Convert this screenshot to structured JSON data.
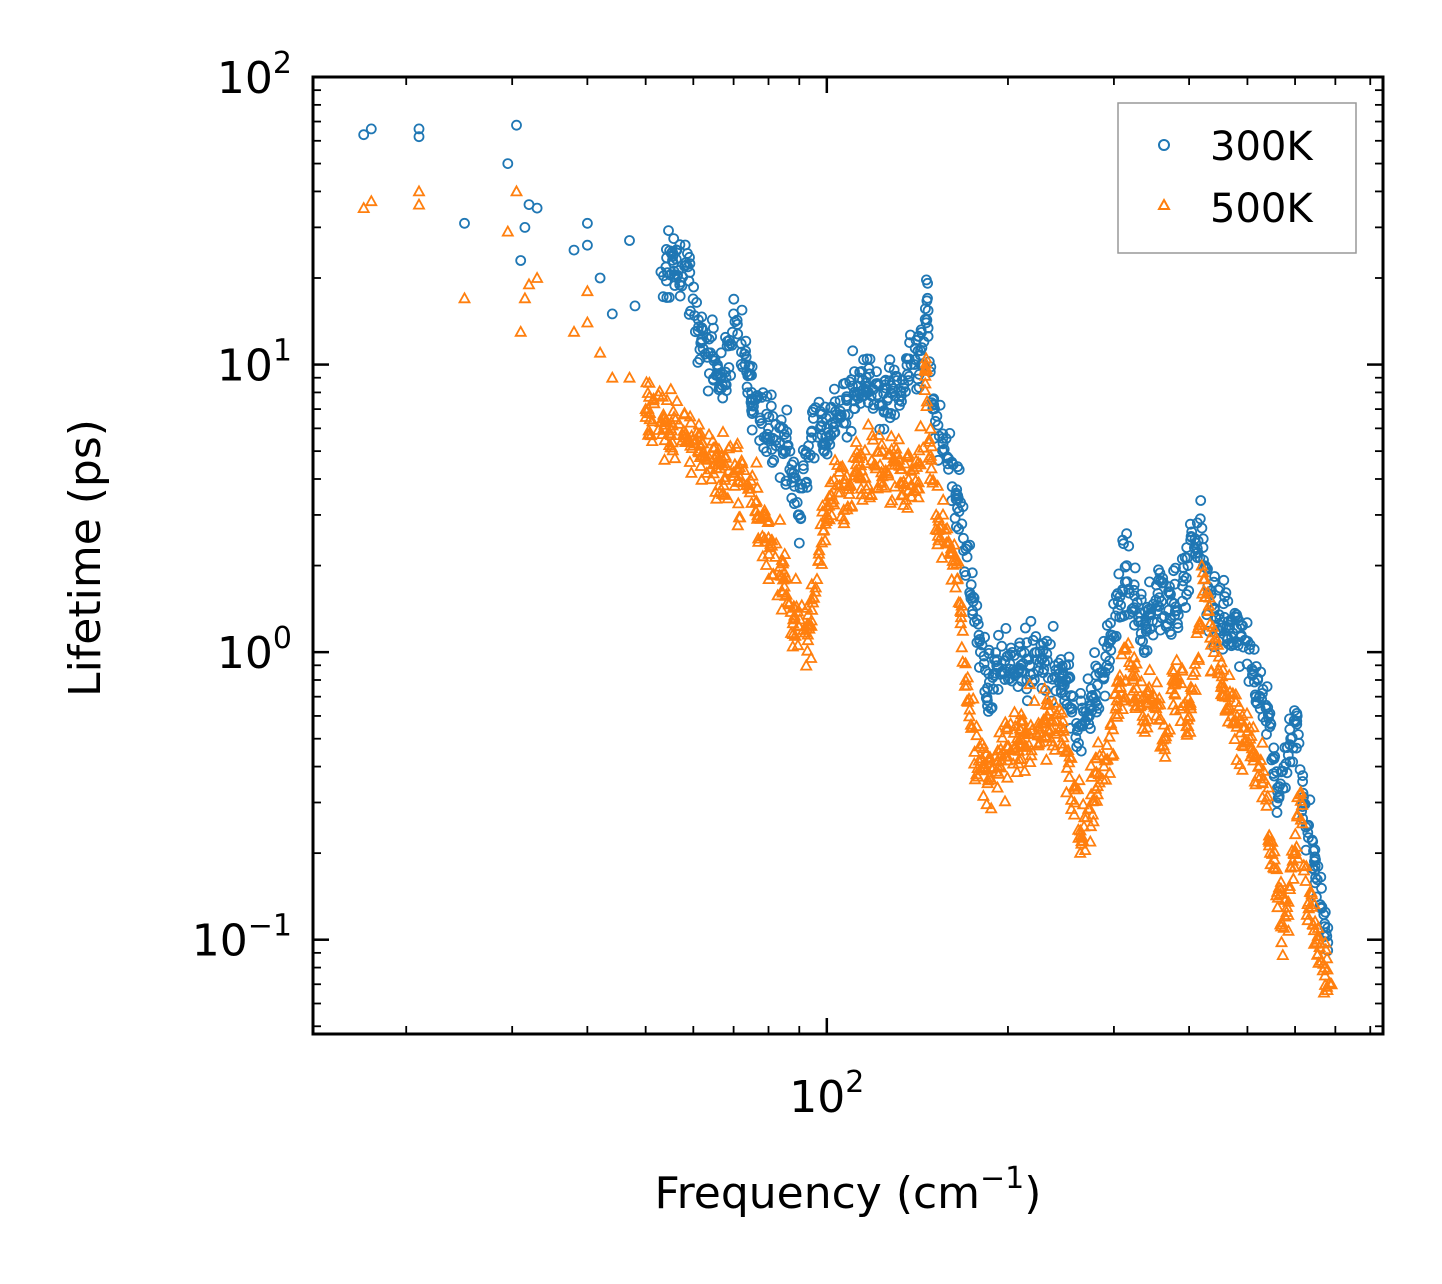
{
  "chart_data": {
    "type": "scatter",
    "title": "",
    "xlabel": "Frequency (cm",
    "xlabel_sup": "−1",
    "xlabel_close": ")",
    "ylabel": "Lifetime (ps)",
    "xscale": "log",
    "yscale": "log",
    "xlim": [
      14,
      840
    ],
    "ylim": [
      0.047,
      100
    ],
    "x_ticks": [
      {
        "value": 100,
        "base": "10",
        "exp": "2"
      }
    ],
    "y_ticks": [
      {
        "value": 0.1,
        "base": "10",
        "exp": "−1"
      },
      {
        "value": 1,
        "base": "10",
        "exp": "0"
      },
      {
        "value": 10,
        "base": "10",
        "exp": "1"
      },
      {
        "value": 100,
        "base": "10",
        "exp": "2"
      }
    ],
    "legend_position": "top-right",
    "series": [
      {
        "name": "300K",
        "color": "#1f77b4",
        "marker": "circle",
        "anchors": [
          [
            17,
            63
          ],
          [
            17.5,
            66
          ],
          [
            21,
            62
          ],
          [
            21,
            66
          ],
          [
            25,
            31
          ],
          [
            29.5,
            50
          ],
          [
            30.5,
            68
          ],
          [
            31,
            23
          ],
          [
            31.5,
            30
          ],
          [
            32,
            36
          ],
          [
            33,
            35
          ],
          [
            38,
            25
          ],
          [
            40,
            31
          ],
          [
            40,
            26
          ],
          [
            42,
            20
          ],
          [
            44,
            15
          ],
          [
            47,
            27
          ],
          [
            48,
            16
          ],
          [
            53,
            21
          ],
          [
            58,
            22
          ],
          [
            62,
            12
          ],
          [
            68,
            9
          ],
          [
            70,
            15
          ],
          [
            75,
            8
          ],
          [
            80,
            6
          ],
          [
            86,
            5.2
          ],
          [
            90,
            3
          ],
          [
            95,
            6.5
          ],
          [
            100,
            6
          ],
          [
            108,
            7.5
          ],
          [
            115,
            8.2
          ],
          [
            125,
            8.5
          ],
          [
            133,
            7.8
          ],
          [
            138,
            10
          ],
          [
            145,
            12
          ],
          [
            147,
            17
          ],
          [
            150,
            7
          ],
          [
            156,
            5
          ],
          [
            165,
            3.5
          ],
          [
            175,
            1.5
          ],
          [
            180,
            1.0
          ],
          [
            185,
            0.75
          ],
          [
            195,
            0.85
          ],
          [
            210,
            0.9
          ],
          [
            230,
            0.92
          ],
          [
            250,
            0.8
          ],
          [
            262,
            0.55
          ],
          [
            275,
            0.7
          ],
          [
            290,
            0.85
          ],
          [
            305,
            1.5
          ],
          [
            315,
            2.0
          ],
          [
            325,
            1.4
          ],
          [
            340,
            1.2
          ],
          [
            355,
            1.6
          ],
          [
            370,
            1.4
          ],
          [
            390,
            1.7
          ],
          [
            410,
            2.4
          ],
          [
            420,
            2.7
          ],
          [
            430,
            1.6
          ],
          [
            450,
            1.3
          ],
          [
            470,
            1.3
          ],
          [
            495,
            1.1
          ],
          [
            520,
            0.8
          ],
          [
            545,
            0.55
          ],
          [
            560,
            0.3
          ],
          [
            575,
            0.4
          ],
          [
            590,
            0.5
          ],
          [
            605,
            0.6
          ],
          [
            618,
            0.3
          ],
          [
            632,
            0.25
          ],
          [
            648,
            0.18
          ],
          [
            665,
            0.13
          ],
          [
            680,
            0.11
          ]
        ]
      },
      {
        "name": "500K",
        "color": "#ff7f0e",
        "marker": "triangle",
        "anchors": [
          [
            17,
            35
          ],
          [
            17.5,
            37
          ],
          [
            21,
            36
          ],
          [
            21,
            40
          ],
          [
            25,
            17
          ],
          [
            29.5,
            29
          ],
          [
            30.5,
            40
          ],
          [
            31,
            13
          ],
          [
            31.5,
            17
          ],
          [
            32,
            19
          ],
          [
            33,
            20
          ],
          [
            38,
            13
          ],
          [
            40,
            18
          ],
          [
            40,
            14
          ],
          [
            42,
            11
          ],
          [
            44,
            9
          ],
          [
            47,
            9
          ],
          [
            50,
            7
          ],
          [
            55,
            6
          ],
          [
            60,
            5.5
          ],
          [
            65,
            4.5
          ],
          [
            70,
            4.2
          ],
          [
            75,
            3.3
          ],
          [
            80,
            2.5
          ],
          [
            85,
            1.8
          ],
          [
            88,
            1.3
          ],
          [
            93,
            1.1
          ],
          [
            97,
            2.2
          ],
          [
            100,
            3.0
          ],
          [
            105,
            3.8
          ],
          [
            112,
            4.3
          ],
          [
            120,
            4.5
          ],
          [
            130,
            4.6
          ],
          [
            138,
            3.8
          ],
          [
            143,
            4.5
          ],
          [
            146,
            9.5
          ],
          [
            148,
            5.5
          ],
          [
            152,
            3.0
          ],
          [
            158,
            2.4
          ],
          [
            165,
            1.8
          ],
          [
            170,
            0.8
          ],
          [
            176,
            0.45
          ],
          [
            185,
            0.35
          ],
          [
            195,
            0.42
          ],
          [
            210,
            0.5
          ],
          [
            225,
            0.55
          ],
          [
            245,
            0.55
          ],
          [
            258,
            0.3
          ],
          [
            265,
            0.22
          ],
          [
            275,
            0.32
          ],
          [
            290,
            0.42
          ],
          [
            305,
            0.75
          ],
          [
            320,
            0.9
          ],
          [
            335,
            0.6
          ],
          [
            350,
            0.7
          ],
          [
            365,
            0.5
          ],
          [
            380,
            0.8
          ],
          [
            400,
            0.6
          ],
          [
            415,
            1.2
          ],
          [
            425,
            1.8
          ],
          [
            440,
            1.0
          ],
          [
            460,
            0.7
          ],
          [
            480,
            0.55
          ],
          [
            505,
            0.5
          ],
          [
            530,
            0.35
          ],
          [
            548,
            0.22
          ],
          [
            562,
            0.14
          ],
          [
            575,
            0.11
          ],
          [
            588,
            0.15
          ],
          [
            600,
            0.2
          ],
          [
            612,
            0.32
          ],
          [
            625,
            0.16
          ],
          [
            640,
            0.13
          ],
          [
            655,
            0.1
          ],
          [
            672,
            0.08
          ],
          [
            690,
            0.07
          ]
        ]
      }
    ]
  }
}
